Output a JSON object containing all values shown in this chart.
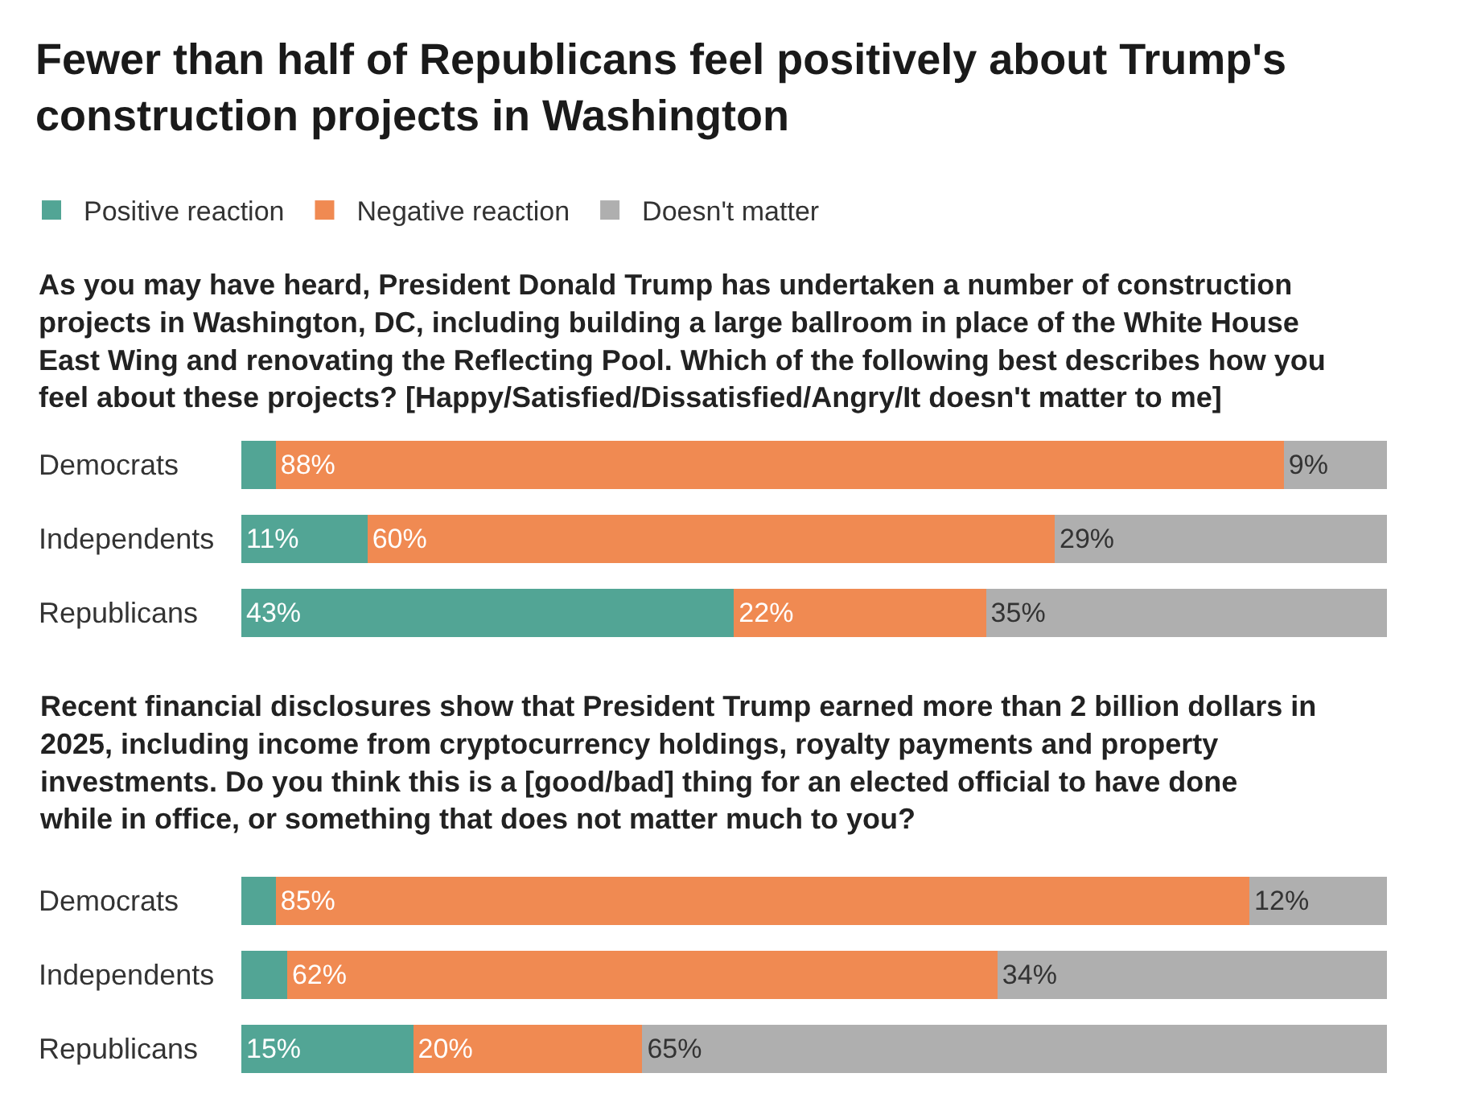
{
  "chart_data": [
    {
      "type": "bar",
      "orientation": "horizontal",
      "stacked": true,
      "title": "Fewer than half of Republicans feel positively about Trump's construction projects in Washington",
      "subtitle": "As you may have heard, President Donald Trump has undertaken a number of construction projects in Washington, DC, including building a large ballroom in place of the White House East Wing and renovating the Reflecting Pool. Which of the following best describes how you feel about these projects? [Happy/Satisfied/Dissatisfied/Angry/It doesn't matter to me]",
      "categories": [
        "Democrats",
        "Independents",
        "Republicans"
      ],
      "xlim": [
        0,
        100
      ],
      "tick_labels": "y",
      "legend": "top left",
      "series": [
        {
          "name": "Positive reaction",
          "color": "#52a595",
          "values": [
            3,
            11,
            43
          ],
          "value_labels": [
            null,
            "11%",
            "43%"
          ]
        },
        {
          "name": "Negative reaction",
          "color": "#f08a52",
          "values": [
            88,
            60,
            22
          ],
          "value_labels": [
            "88%",
            "60%",
            "22%"
          ]
        },
        {
          "name": "Doesn't matter",
          "color": "#afafaf",
          "values": [
            9,
            29,
            35
          ],
          "value_labels": [
            "9%",
            "29%",
            "35%"
          ]
        }
      ]
    },
    {
      "type": "bar",
      "orientation": "horizontal",
      "stacked": true,
      "subtitle": "Recent financial disclosures show that President Trump earned more than 2 billion dollars in 2025, including income from cryptocurrency holdings, royalty payments and property investments. Do you think this is a [good/bad] thing for an elected official to have done while in office, or something that does not matter much to you?",
      "categories": [
        "Democrats",
        "Independents",
        "Republicans"
      ],
      "xlim": [
        0,
        100
      ],
      "tick_labels": "y",
      "series": [
        {
          "color": "#52a595",
          "values": [
            3,
            4,
            15
          ],
          "value_labels": [
            null,
            null,
            "15%"
          ]
        },
        {
          "color": "#f08a52",
          "values": [
            85,
            62,
            20
          ],
          "value_labels": [
            "85%",
            "62%",
            "20%"
          ]
        },
        {
          "color": "#afafaf",
          "values": [
            12,
            34,
            65
          ],
          "value_labels": [
            "12%",
            "34%",
            "65%"
          ]
        }
      ]
    }
  ]
}
